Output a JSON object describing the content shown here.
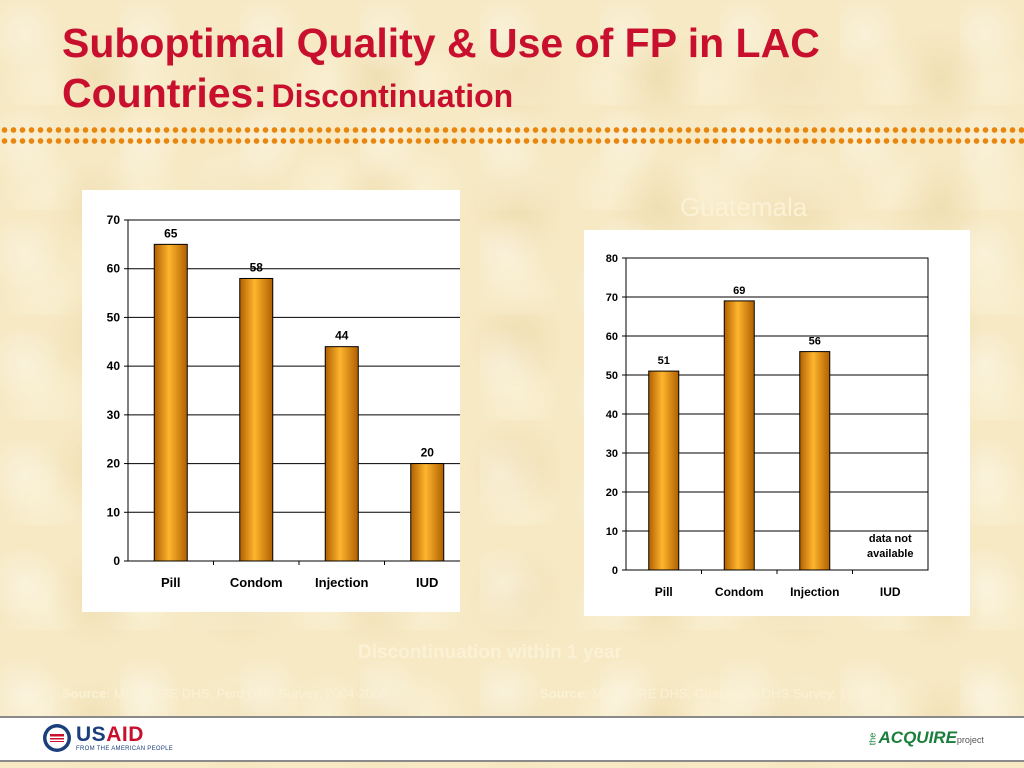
{
  "slide": {
    "title_main": "Suboptimal Quality & Use of FP in LAC Countries:",
    "title_sub": "Discontinuation",
    "country_label": "Guatemala",
    "bottom_caption": "Discontinuation within 1 year",
    "source_left_label": "Source:",
    "source_left_text": "MEASURE DHS, Peru DHS Survey, 2004-2008",
    "source_right_label": "Source:",
    "source_right_text": "MEASURE DHS, Guatemala DHS Survey, 1999"
  },
  "footer": {
    "usaid_name_blue": "US",
    "usaid_name_red": "AID",
    "usaid_tagline": "FROM THE AMERICAN PEOPLE",
    "acquire_the": "the",
    "acquire_name": "ACQUIRE",
    "acquire_project": "project"
  },
  "colors": {
    "title": "#c8102e",
    "dots": "#e8870f",
    "bar_light": "#ffb52e",
    "bar_dark": "#b06000"
  },
  "chart_data": [
    {
      "type": "bar",
      "categories": [
        "Pill",
        "Condom",
        "Injection",
        "IUD"
      ],
      "values": [
        65,
        58,
        44,
        20
      ],
      "data_labels": [
        "65",
        "58",
        "44",
        "20"
      ],
      "ylim": [
        0,
        70
      ],
      "yticks": [
        0,
        10,
        20,
        30,
        40,
        50,
        60,
        70
      ],
      "grid": true,
      "legend": "none"
    },
    {
      "type": "bar",
      "categories": [
        "Pill",
        "Condom",
        "Injection",
        "IUD"
      ],
      "values": [
        51,
        69,
        56,
        null
      ],
      "data_labels": [
        "51",
        "69",
        "56",
        ""
      ],
      "ylim": [
        0,
        80
      ],
      "yticks": [
        0,
        10,
        20,
        30,
        40,
        50,
        60,
        70,
        80
      ],
      "grid": true,
      "legend": "none",
      "annotation": [
        "data not",
        "available"
      ]
    }
  ]
}
